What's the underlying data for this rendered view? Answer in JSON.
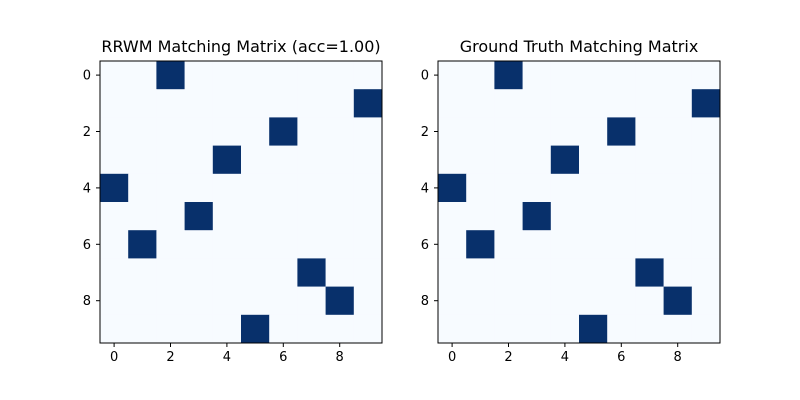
{
  "chart_data": [
    {
      "type": "heatmap",
      "title": "RRWM Matching Matrix (acc=1.00)",
      "xlabel": "",
      "ylabel": "",
      "rows": 10,
      "cols": 10,
      "xticks": [
        0,
        2,
        4,
        6,
        8
      ],
      "yticks": [
        0,
        2,
        4,
        6,
        8
      ],
      "xlim": [
        -0.5,
        9.5
      ],
      "ylim": [
        9.5,
        -0.5
      ],
      "grid": false,
      "colormap": "Blues",
      "colors": {
        "low": "#f7fbff",
        "high": "#08306b"
      },
      "matrix": [
        [
          0,
          0,
          1,
          0,
          0,
          0,
          0,
          0,
          0,
          0
        ],
        [
          0,
          0,
          0,
          0,
          0,
          0,
          0,
          0,
          0,
          1
        ],
        [
          0,
          0,
          0,
          0,
          0,
          0,
          1,
          0,
          0,
          0
        ],
        [
          0,
          0,
          0,
          0,
          1,
          0,
          0,
          0,
          0,
          0
        ],
        [
          1,
          0,
          0,
          0,
          0,
          0,
          0,
          0,
          0,
          0
        ],
        [
          0,
          0,
          0,
          1,
          0,
          0,
          0,
          0,
          0,
          0
        ],
        [
          0,
          1,
          0,
          0,
          0,
          0,
          0,
          0,
          0,
          0
        ],
        [
          0,
          0,
          0,
          0,
          0,
          0,
          0,
          1,
          0,
          0
        ],
        [
          0,
          0,
          0,
          0,
          0,
          0,
          0,
          0,
          1,
          0
        ],
        [
          0,
          0,
          0,
          0,
          0,
          1,
          0,
          0,
          0,
          0
        ]
      ]
    },
    {
      "type": "heatmap",
      "title": "Ground Truth Matching Matrix",
      "xlabel": "",
      "ylabel": "",
      "rows": 10,
      "cols": 10,
      "xticks": [
        0,
        2,
        4,
        6,
        8
      ],
      "yticks": [
        0,
        2,
        4,
        6,
        8
      ],
      "xlim": [
        -0.5,
        9.5
      ],
      "ylim": [
        9.5,
        -0.5
      ],
      "grid": false,
      "colormap": "Blues",
      "colors": {
        "low": "#f7fbff",
        "high": "#08306b"
      },
      "matrix": [
        [
          0,
          0,
          1,
          0,
          0,
          0,
          0,
          0,
          0,
          0
        ],
        [
          0,
          0,
          0,
          0,
          0,
          0,
          0,
          0,
          0,
          1
        ],
        [
          0,
          0,
          0,
          0,
          0,
          0,
          1,
          0,
          0,
          0
        ],
        [
          0,
          0,
          0,
          0,
          1,
          0,
          0,
          0,
          0,
          0
        ],
        [
          1,
          0,
          0,
          0,
          0,
          0,
          0,
          0,
          0,
          0
        ],
        [
          0,
          0,
          0,
          1,
          0,
          0,
          0,
          0,
          0,
          0
        ],
        [
          0,
          1,
          0,
          0,
          0,
          0,
          0,
          0,
          0,
          0
        ],
        [
          0,
          0,
          0,
          0,
          0,
          0,
          0,
          1,
          0,
          0
        ],
        [
          0,
          0,
          0,
          0,
          0,
          0,
          0,
          0,
          1,
          0
        ],
        [
          0,
          0,
          0,
          0,
          0,
          1,
          0,
          0,
          0,
          0
        ]
      ]
    }
  ]
}
